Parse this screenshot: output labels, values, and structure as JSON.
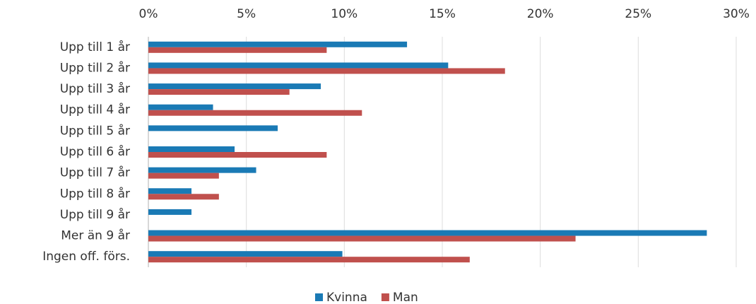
{
  "chart_data": {
    "type": "bar",
    "orientation": "horizontal",
    "categories": [
      "Upp till 1 år",
      "Upp till 2 år",
      "Upp till 3 år",
      "Upp till 4 år",
      "Upp till 5 år",
      "Upp till 6 år",
      "Upp till 7 år",
      "Upp till 8 år",
      "Upp till 9 år",
      "Mer än 9  år",
      "Ingen off. förs."
    ],
    "series": [
      {
        "name": "Kvinna",
        "color": "#1a7ab5",
        "values": [
          13.2,
          15.3,
          8.8,
          3.3,
          6.6,
          4.4,
          5.5,
          2.2,
          2.2,
          28.5,
          9.9
        ]
      },
      {
        "name": "Man",
        "color": "#c0504d",
        "values": [
          9.1,
          18.2,
          7.2,
          10.9,
          0,
          9.1,
          3.6,
          3.6,
          0,
          21.8,
          16.4
        ]
      }
    ],
    "xlim": [
      0,
      30
    ],
    "xticks": [
      {
        "value": 0,
        "label": "0%"
      },
      {
        "value": 5,
        "label": "5%"
      },
      {
        "value": 10,
        "label": "10%"
      },
      {
        "value": 15,
        "label": "15%"
      },
      {
        "value": 20,
        "label": "20%"
      },
      {
        "value": 25,
        "label": "25%"
      },
      {
        "value": 30,
        "label": "30%"
      }
    ],
    "grid": true,
    "legend": "bottom"
  }
}
